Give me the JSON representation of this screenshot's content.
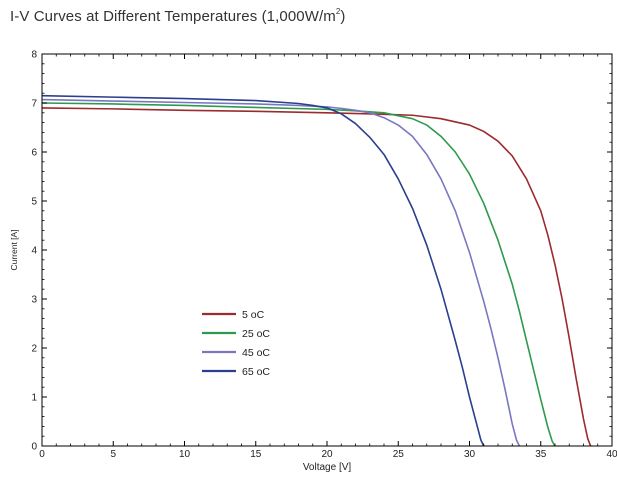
{
  "title": {
    "text": "I-V Curves at Different Temperatures (1,000W/m",
    "sup": "2",
    "close": ")"
  },
  "chart_data": {
    "type": "line",
    "title": "I-V Curves at Different Temperatures (1,000W/m²)",
    "xlabel": "Voltage [V]",
    "ylabel": "Current [A]",
    "xlim": [
      0,
      40
    ],
    "ylim": [
      0,
      8
    ],
    "xticks": [
      0,
      5,
      10,
      15,
      20,
      25,
      30,
      35,
      40
    ],
    "yticks": [
      0,
      1,
      2,
      3,
      4,
      5,
      6,
      7,
      8
    ],
    "grid": false,
    "legend_position": "center-left",
    "series": [
      {
        "name": "5 oC",
        "color": "#9b2b2e",
        "x": [
          0,
          5,
          10,
          15,
          20,
          24,
          26,
          28,
          30,
          31,
          32,
          33,
          34,
          35,
          35.5,
          36,
          36.5,
          37,
          37.5,
          38,
          38.3,
          38.5
        ],
        "y": [
          6.9,
          6.88,
          6.85,
          6.83,
          6.8,
          6.77,
          6.75,
          6.68,
          6.55,
          6.42,
          6.22,
          5.92,
          5.45,
          4.8,
          4.3,
          3.7,
          3.0,
          2.2,
          1.35,
          0.55,
          0.15,
          0
        ]
      },
      {
        "name": "25 oC",
        "color": "#2e9a4e",
        "x": [
          0,
          5,
          10,
          15,
          20,
          22,
          24,
          26,
          27,
          28,
          29,
          30,
          31,
          32,
          33,
          33.5,
          34,
          34.5,
          35,
          35.5,
          35.8,
          36
        ],
        "y": [
          7.0,
          6.98,
          6.95,
          6.91,
          6.87,
          6.84,
          6.8,
          6.68,
          6.55,
          6.32,
          6.0,
          5.55,
          4.95,
          4.2,
          3.3,
          2.75,
          2.15,
          1.55,
          0.95,
          0.38,
          0.1,
          0
        ]
      },
      {
        "name": "45 oC",
        "color": "#7a77c2",
        "x": [
          0,
          5,
          10,
          15,
          18,
          20,
          21,
          22,
          23,
          24,
          25,
          26,
          27,
          28,
          29,
          30,
          31,
          31.5,
          32,
          32.5,
          33,
          33.3,
          33.5
        ],
        "y": [
          7.07,
          7.04,
          7.01,
          6.98,
          6.95,
          6.92,
          6.89,
          6.85,
          6.8,
          6.7,
          6.55,
          6.32,
          5.95,
          5.45,
          4.8,
          3.95,
          2.95,
          2.4,
          1.8,
          1.15,
          0.45,
          0.12,
          0
        ]
      },
      {
        "name": "65 oC",
        "color": "#2b3f8e",
        "x": [
          0,
          5,
          10,
          15,
          18,
          19,
          20,
          21,
          22,
          23,
          24,
          25,
          26,
          27,
          28,
          29,
          29.5,
          30,
          30.5,
          30.8,
          31
        ],
        "y": [
          7.15,
          7.12,
          7.09,
          7.05,
          6.99,
          6.95,
          6.9,
          6.78,
          6.58,
          6.3,
          5.95,
          5.45,
          4.85,
          4.1,
          3.2,
          2.15,
          1.6,
          1.0,
          0.45,
          0.12,
          0
        ]
      }
    ]
  }
}
